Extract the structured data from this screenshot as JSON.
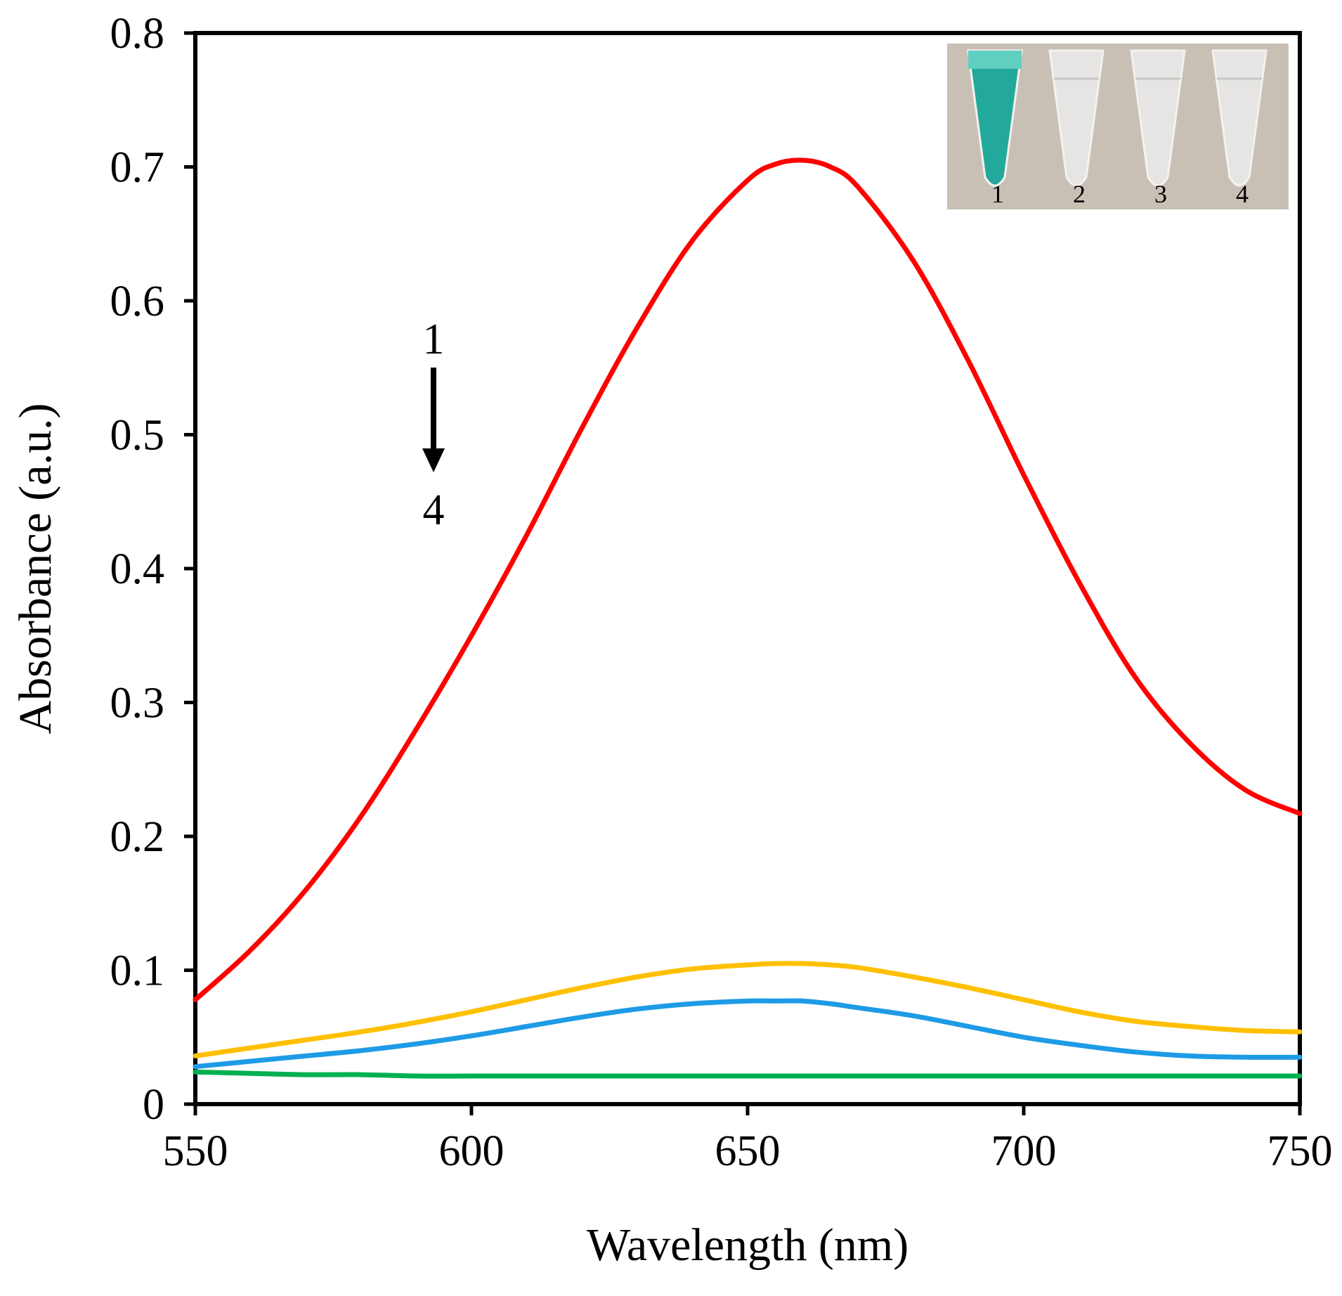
{
  "chart_data": {
    "type": "line",
    "title": "",
    "xlabel": "Wavelength (nm)",
    "ylabel": "Absorbance (a.u.)",
    "xlim": [
      550,
      750
    ],
    "ylim": [
      0,
      0.8
    ],
    "x_ticks": [
      "550",
      "600",
      "650",
      "700",
      "750"
    ],
    "y_ticks": [
      "0",
      "0.1",
      "0.2",
      "0.3",
      "0.4",
      "0.5",
      "0.6",
      "0.7",
      "0.8"
    ],
    "x_tick_values": [
      550,
      600,
      650,
      700,
      750
    ],
    "y_tick_values": [
      0,
      0.1,
      0.2,
      0.3,
      0.4,
      0.5,
      0.6,
      0.7,
      0.8
    ],
    "grid": false,
    "legend": "none",
    "x": [
      550,
      560,
      570,
      580,
      590,
      600,
      610,
      620,
      630,
      640,
      650,
      655,
      660,
      665,
      670,
      680,
      690,
      700,
      710,
      720,
      730,
      740,
      750
    ],
    "series": [
      {
        "name": "1",
        "color": "#ff0000",
        "values": [
          0.078,
          0.115,
          0.16,
          0.215,
          0.28,
          0.35,
          0.425,
          0.505,
          0.58,
          0.645,
          0.69,
          0.702,
          0.705,
          0.7,
          0.685,
          0.63,
          0.555,
          0.47,
          0.39,
          0.32,
          0.27,
          0.235,
          0.217
        ]
      },
      {
        "name": "2",
        "color": "#ffc000",
        "values": [
          0.036,
          0.042,
          0.048,
          0.054,
          0.061,
          0.069,
          0.078,
          0.087,
          0.095,
          0.101,
          0.104,
          0.105,
          0.105,
          0.104,
          0.102,
          0.095,
          0.087,
          0.078,
          0.069,
          0.062,
          0.058,
          0.055,
          0.054
        ]
      },
      {
        "name": "3",
        "color": "#1e9be6",
        "values": [
          0.028,
          0.032,
          0.036,
          0.04,
          0.045,
          0.051,
          0.058,
          0.065,
          0.071,
          0.075,
          0.077,
          0.077,
          0.077,
          0.075,
          0.072,
          0.066,
          0.058,
          0.05,
          0.044,
          0.039,
          0.036,
          0.035,
          0.035
        ]
      },
      {
        "name": "4",
        "color": "#00b050",
        "values": [
          0.024,
          0.023,
          0.022,
          0.022,
          0.021,
          0.021,
          0.021,
          0.021,
          0.021,
          0.021,
          0.021,
          0.021,
          0.021,
          0.021,
          0.021,
          0.021,
          0.021,
          0.021,
          0.021,
          0.021,
          0.021,
          0.021,
          0.021
        ]
      }
    ],
    "annotations": {
      "arrow_start_label": "1",
      "arrow_end_label": "4"
    },
    "inset": {
      "tube_labels": [
        "1",
        "2",
        "3",
        "4"
      ],
      "tube_colors": [
        "#1aa89a",
        "#e8e8e6",
        "#e8e8e6",
        "#e8e8e6"
      ],
      "background_color": "#c9c0b5"
    }
  }
}
